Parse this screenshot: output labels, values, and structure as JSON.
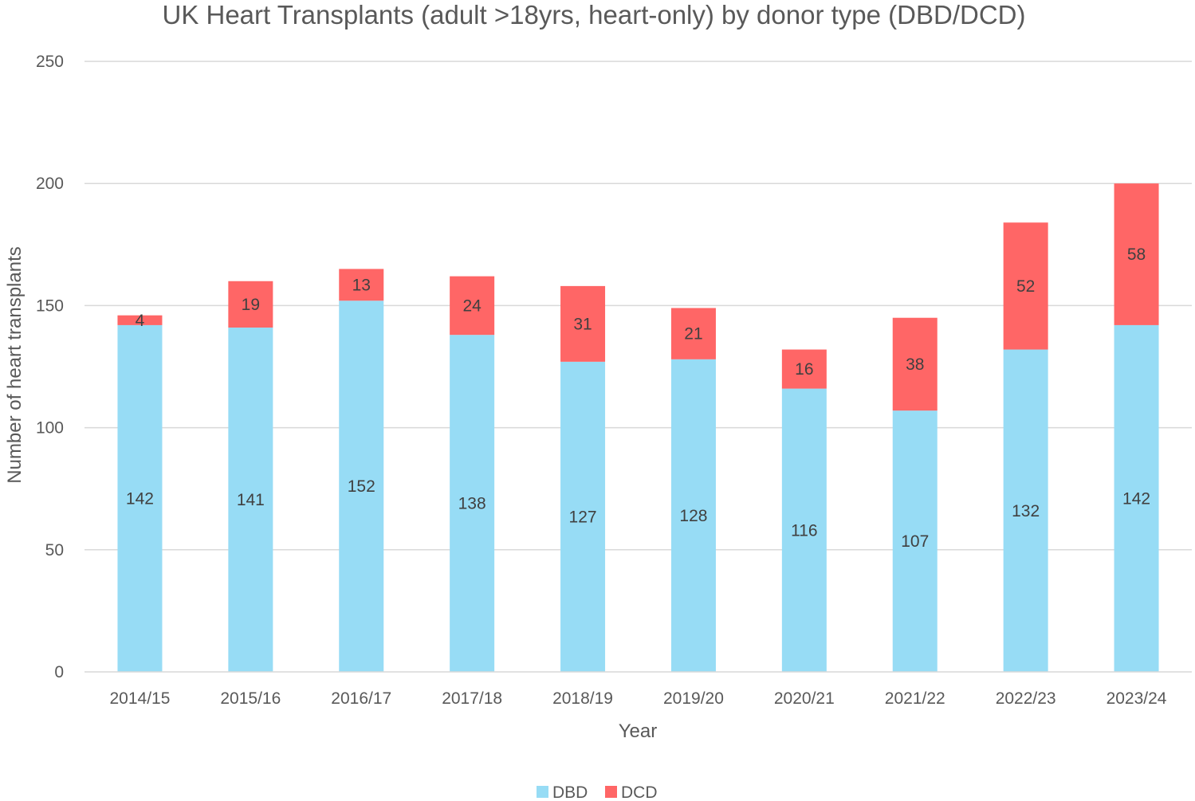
{
  "chart_data": {
    "type": "bar",
    "stacked": true,
    "title": "UK Heart Transplants (adult >18yrs, heart-only) by donor type (DBD/DCD)",
    "xlabel": "Year",
    "ylabel": "Number of heart transplants",
    "ylim": [
      0,
      250
    ],
    "yticks": [
      0,
      50,
      100,
      150,
      200,
      250
    ],
    "ytick_labels": [
      "0",
      "50",
      "100",
      "150",
      "200",
      "250"
    ],
    "grid": true,
    "legend_position": "bottom",
    "categories": [
      "2014/15",
      "2015/16",
      "2016/17",
      "2017/18",
      "2018/19",
      "2019/20",
      "2020/21",
      "2021/22",
      "2022/23",
      "2023/24"
    ],
    "series": [
      {
        "name": "DBD",
        "color": "#97DCF5",
        "values": [
          142,
          141,
          152,
          138,
          127,
          128,
          116,
          107,
          132,
          142
        ]
      },
      {
        "name": "DCD",
        "color": "#FF6666",
        "values": [
          4,
          19,
          13,
          24,
          31,
          21,
          16,
          38,
          52,
          58
        ]
      }
    ]
  }
}
